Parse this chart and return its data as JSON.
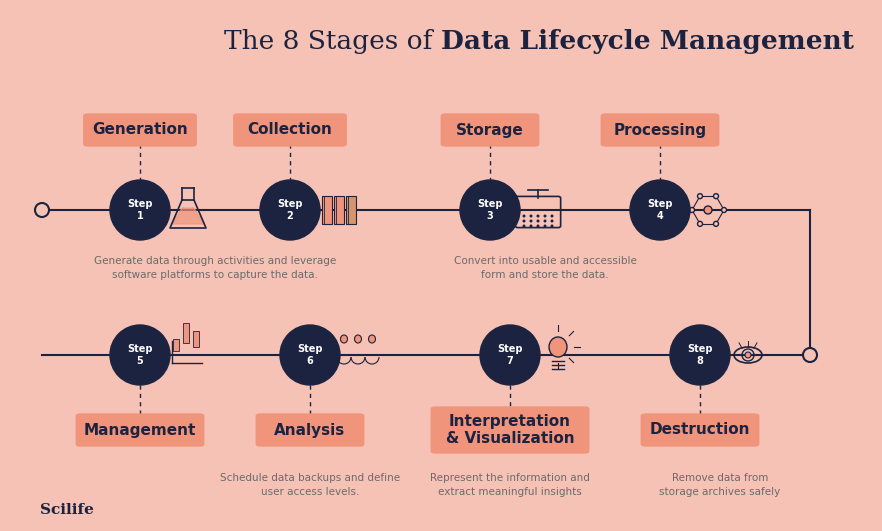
{
  "bg_color": "#f5c2b5",
  "dark_navy": "#1b2340",
  "salmon": "#f0957b",
  "gray_text": "#6b6b6b",
  "white": "#ffffff",
  "title_normal": "The 8 Stages of ",
  "title_bold": "Data Lifecycle Management",
  "top_stages": [
    "Generation",
    "Collection",
    "Storage",
    "Processing"
  ],
  "bottom_stages_line1": [
    "Management",
    "Analysis",
    "Interpretation",
    "Destruction"
  ],
  "bottom_stages_line2": [
    "",
    "",
    "& Visualization",
    ""
  ],
  "top_steps": [
    "Step\n1",
    "Step\n2",
    "Step\n3",
    "Step\n4"
  ],
  "bottom_steps": [
    "Step\n5",
    "Step\n6",
    "Step\n7",
    "Step\n8"
  ],
  "desc1": "Generate data through activities and leverage\nsoftware platforms to capture the data.",
  "desc2": "Convert into usable and accessible\nform and store the data.",
  "desc3": "Schedule data backups and define\nuser access levels.",
  "desc4": "Represent the information and\nextract meaningful insights",
  "desc5": "Remove data from\nstorage archives safely",
  "scilife": "Scilife"
}
